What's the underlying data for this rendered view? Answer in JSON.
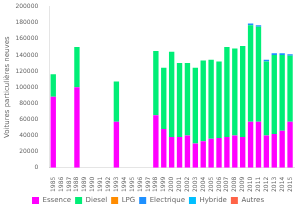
{
  "chart_data": {
    "type": "bar",
    "stacked": true,
    "grid": false,
    "legend": "bottom",
    "ylabel": "Voitures particulières neuves",
    "categories": [
      "1985",
      "1986",
      "1987",
      "1988",
      "1989",
      "1990",
      "1991",
      "1992",
      "1993",
      "1994",
      "1995",
      "1996",
      "1997",
      "1998",
      "1999",
      "2000",
      "2001",
      "2002",
      "2003",
      "2004",
      "2005",
      "2006",
      "2007",
      "2008",
      "2009",
      "2010",
      "2011",
      "2012",
      "2013",
      "2014",
      "2015"
    ],
    "ylim": [
      0,
      200000
    ],
    "yticks": [
      0,
      20000,
      40000,
      60000,
      80000,
      100000,
      120000,
      140000,
      160000,
      180000,
      200000
    ],
    "series": [
      {
        "name": "Essence",
        "color": "#FF00FF",
        "values": [
          88000,
          0,
          0,
          100000,
          0,
          0,
          0,
          0,
          57000,
          0,
          0,
          0,
          0,
          65000,
          48000,
          38000,
          38000,
          40000,
          30000,
          33000,
          36000,
          37000,
          38000,
          40000,
          38000,
          57000,
          57000,
          40000,
          42000,
          46000,
          57000
        ]
      },
      {
        "name": "Diesel",
        "color": "#00EE76",
        "values": [
          28000,
          0,
          0,
          50000,
          0,
          0,
          0,
          0,
          50000,
          0,
          0,
          0,
          0,
          80000,
          76000,
          106000,
          92000,
          90000,
          94000,
          100000,
          98000,
          95000,
          112000,
          108000,
          113000,
          120000,
          118000,
          92000,
          98000,
          94000,
          82000
        ]
      },
      {
        "name": "LPG",
        "color": "#FF8C00",
        "values": [
          0,
          0,
          0,
          0,
          0,
          0,
          0,
          0,
          0,
          0,
          0,
          0,
          0,
          0,
          0,
          0,
          0,
          0,
          0,
          0,
          0,
          0,
          0,
          0,
          0,
          0,
          0,
          0,
          0,
          0,
          0
        ]
      },
      {
        "name": "Electrique",
        "color": "#1E90FF",
        "values": [
          0,
          0,
          0,
          0,
          0,
          0,
          0,
          0,
          0,
          0,
          0,
          0,
          0,
          0,
          0,
          0,
          0,
          0,
          0,
          0,
          0,
          0,
          0,
          0,
          0,
          2000,
          2000,
          2000,
          2000,
          2000,
          2000
        ]
      },
      {
        "name": "Hybride",
        "color": "#00BFFF",
        "values": [
          0,
          0,
          0,
          0,
          0,
          0,
          0,
          0,
          0,
          0,
          0,
          0,
          0,
          0,
          0,
          0,
          0,
          0,
          0,
          0,
          0,
          0,
          0,
          0,
          0,
          0,
          0,
          0,
          0,
          0,
          0
        ]
      },
      {
        "name": "Autres",
        "color": "#FF6347",
        "values": [
          0,
          0,
          0,
          0,
          0,
          0,
          0,
          0,
          0,
          0,
          0,
          0,
          0,
          0,
          0,
          0,
          0,
          0,
          0,
          0,
          0,
          0,
          0,
          0,
          0,
          0,
          0,
          0,
          0,
          0,
          0
        ]
      }
    ]
  }
}
